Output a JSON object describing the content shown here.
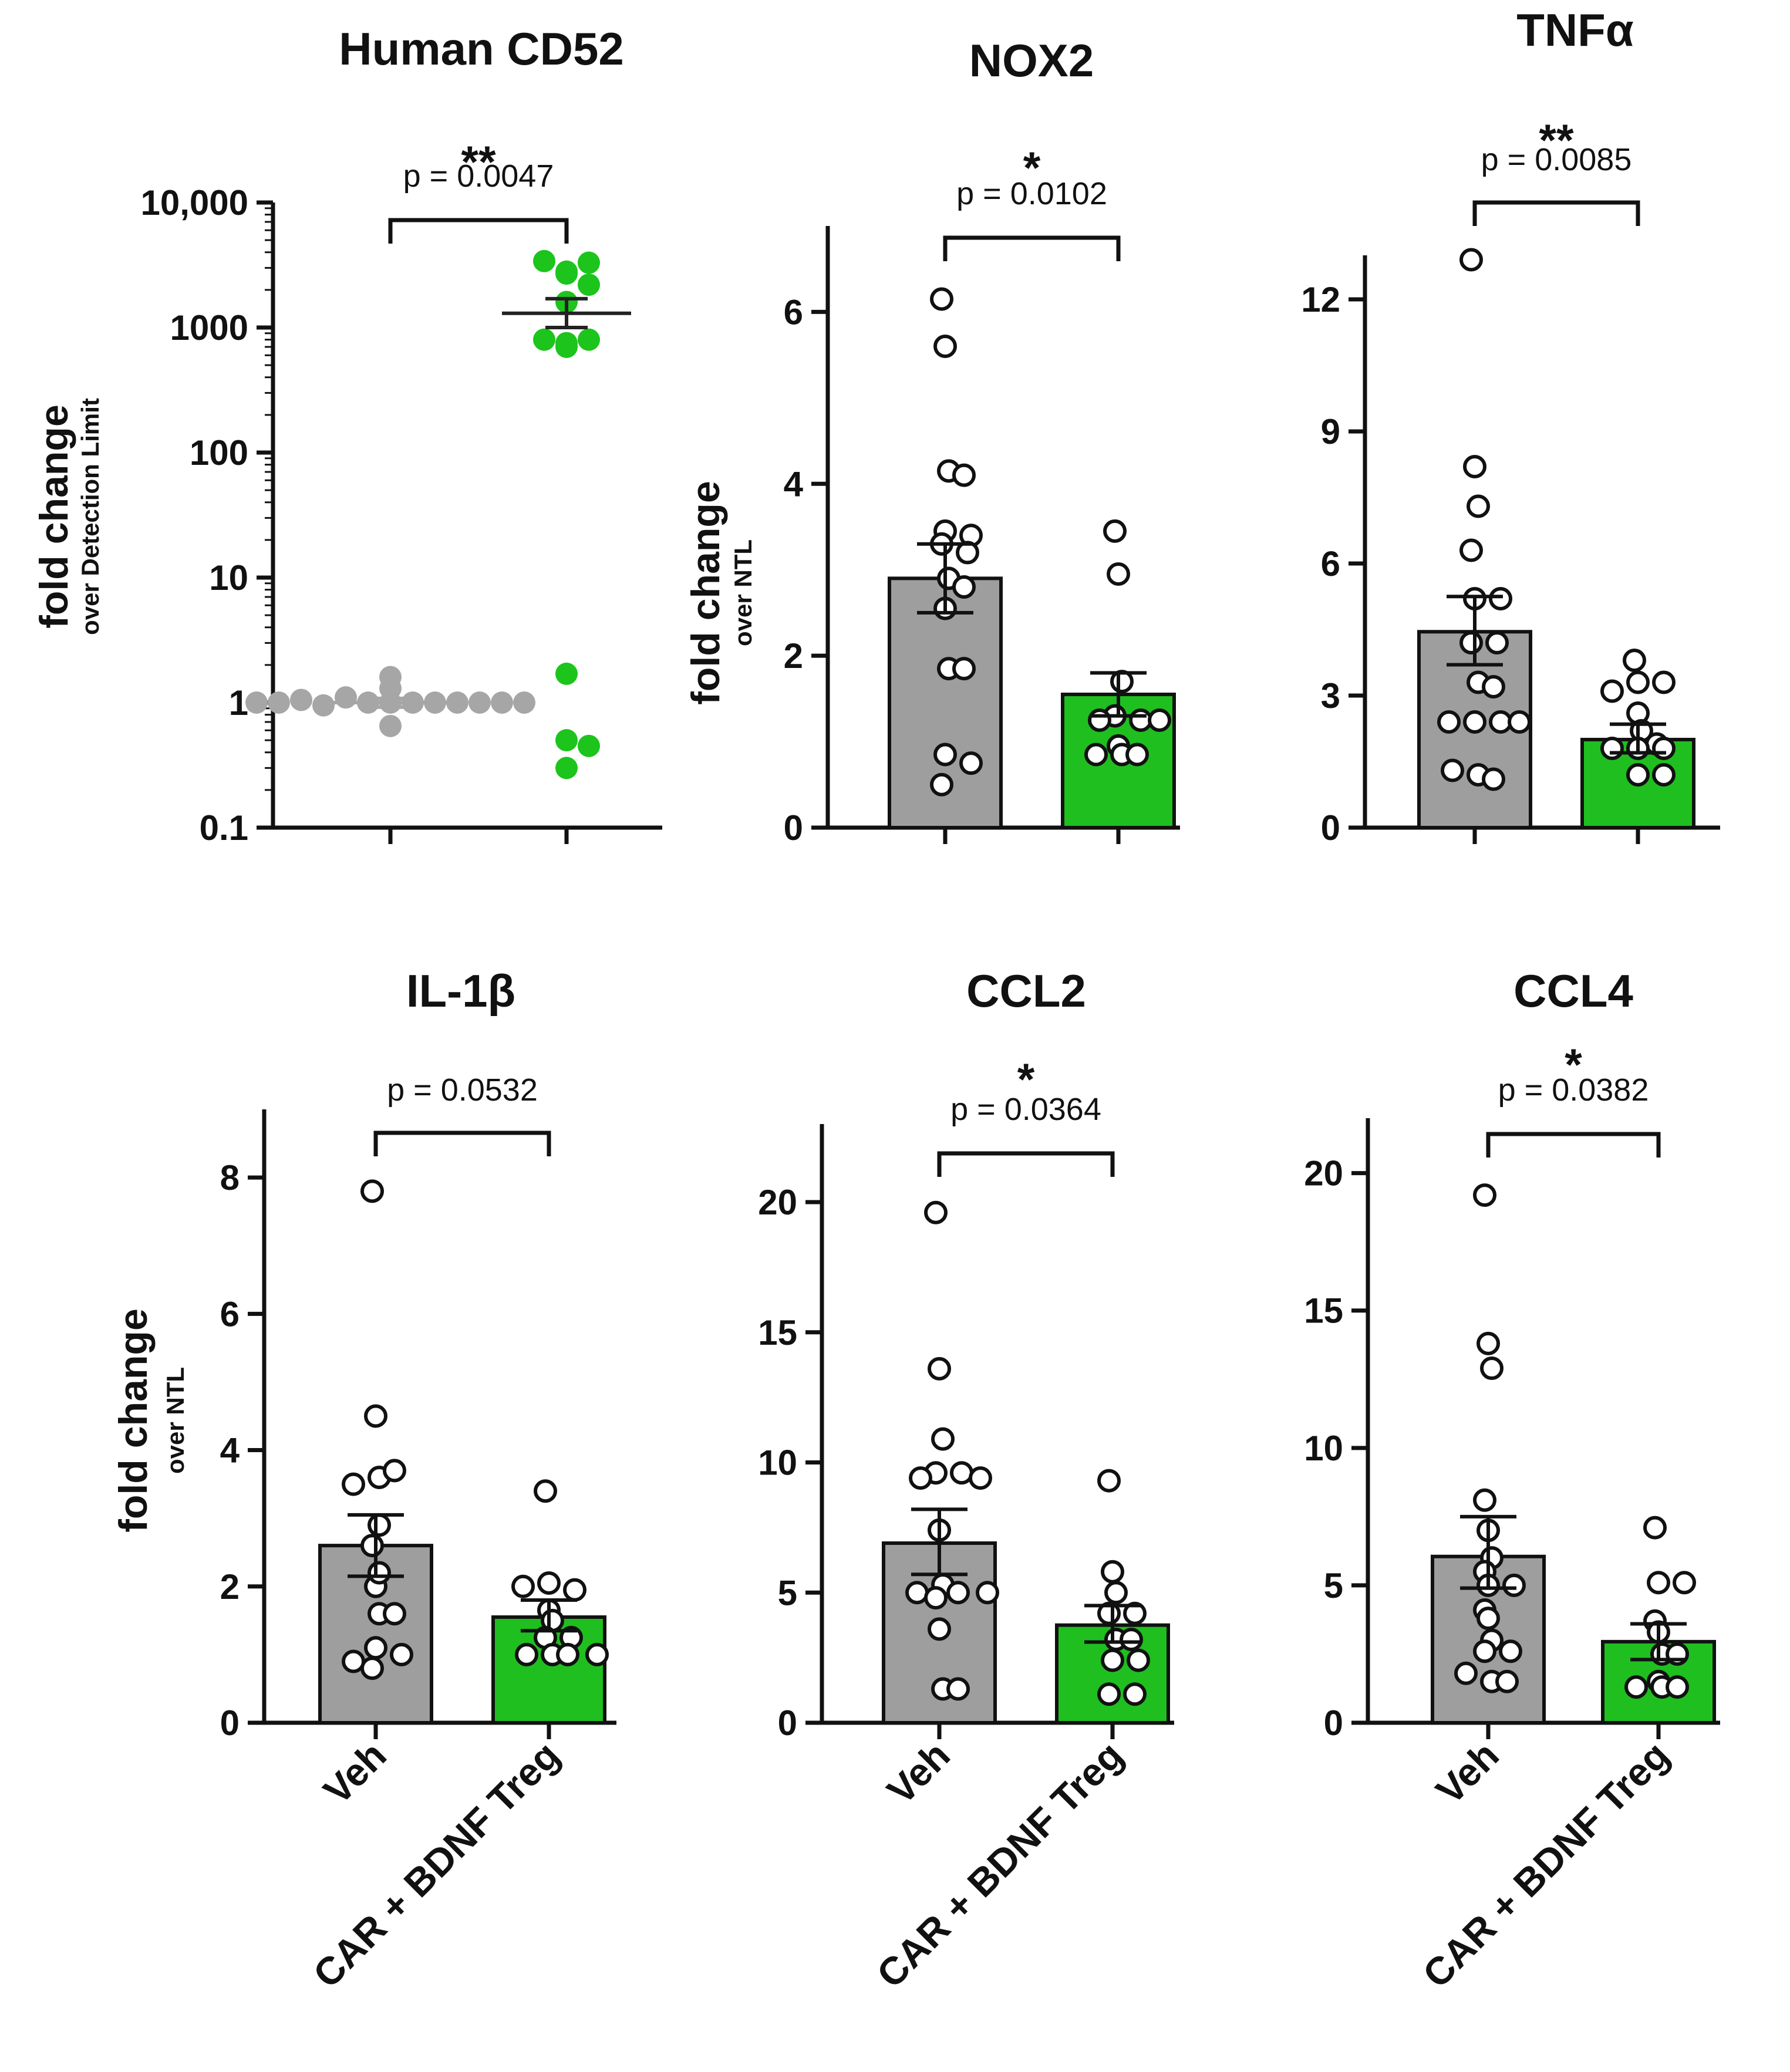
{
  "colors": {
    "veh_fill": "#9e9e9e",
    "treg_fill": "#1fbf1f",
    "veh_dot": "#a6a6a6",
    "treg_dot": "#1cc41c",
    "axis": "#111111"
  },
  "categories": [
    "Veh",
    "CAR + BDNF Treg"
  ],
  "chart_data": [
    {
      "type": "scatter",
      "title": "Human CD52",
      "ylabel": "fold change",
      "ylabel_sub": "over Detection Limit",
      "yscale": "log",
      "ylim": [
        0.1,
        10000
      ],
      "ticks": [
        0.1,
        1,
        10,
        100,
        1000,
        10000
      ],
      "tick_labels": [
        "0.1",
        "1",
        "10",
        "100",
        "1000",
        "10,000"
      ],
      "p_text": "p = 0.0047",
      "stars": "**",
      "show_categories": false,
      "series": [
        {
          "name": "Veh",
          "mean": 1.0,
          "sem_low": 0.92,
          "sem_high": 1.08,
          "points": [
            1,
            1,
            1,
            1,
            1.1,
            1,
            0.95,
            1,
            1.05,
            1,
            1.6,
            1.3,
            0.65,
            1,
            1,
            1
          ]
        },
        {
          "name": "CAR + BDNF Treg",
          "mean": 1300,
          "sem_low": 1000,
          "sem_high": 1700,
          "points": [
            2700,
            2800,
            3300,
            3400,
            1600,
            2200,
            700,
            750,
            800,
            800,
            1.7,
            0.5,
            0.45,
            0.3
          ]
        }
      ]
    },
    {
      "type": "bar",
      "title": "NOX2",
      "ylabel": "fold change",
      "ylabel_sub": "over NTL",
      "yscale": "linear",
      "ylim": [
        0,
        7
      ],
      "ticks": [
        0,
        2,
        4,
        6
      ],
      "tick_labels": [
        "0",
        "2",
        "4",
        "6"
      ],
      "p_text": "p = 0.0102",
      "stars": "*",
      "show_categories": false,
      "series": [
        {
          "name": "Veh",
          "mean": 2.9,
          "sem_low": 2.5,
          "sem_high": 3.3,
          "points": [
            6.15,
            5.6,
            4.15,
            4.1,
            3.45,
            3.4,
            3.3,
            3.2,
            2.9,
            2.8,
            2.55,
            1.85,
            1.85,
            0.85,
            0.75,
            0.5
          ]
        },
        {
          "name": "CAR + BDNF Treg",
          "mean": 1.55,
          "sem_low": 1.3,
          "sem_high": 1.8,
          "points": [
            3.45,
            2.95,
            1.7,
            1.3,
            1.25,
            1.25,
            1.25,
            0.95,
            0.85,
            0.85,
            0.85
          ]
        }
      ]
    },
    {
      "type": "bar",
      "title": "TNFα",
      "ylabel": "",
      "ylabel_sub": "",
      "yscale": "linear",
      "ylim": [
        0,
        13
      ],
      "ticks": [
        0,
        3,
        6,
        9,
        12
      ],
      "tick_labels": [
        "0",
        "3",
        "6",
        "9",
        "12"
      ],
      "p_text": "p = 0.0085",
      "stars": "**",
      "show_categories": false,
      "series": [
        {
          "name": "Veh",
          "mean": 4.45,
          "sem_low": 3.7,
          "sem_high": 5.25,
          "points": [
            12.9,
            8.2,
            7.3,
            6.3,
            5.2,
            5.2,
            4.2,
            4.2,
            3.3,
            3.2,
            2.4,
            2.4,
            2.4,
            2.4,
            1.2,
            1.1,
            1.3
          ]
        },
        {
          "name": "CAR + BDNF Treg",
          "mean": 2.0,
          "sem_low": 1.7,
          "sem_high": 2.35,
          "points": [
            3.8,
            3.3,
            3.3,
            3.1,
            2.6,
            2.2,
            1.9,
            1.8,
            1.8,
            1.8,
            1.2,
            1.2
          ]
        }
      ]
    },
    {
      "type": "bar",
      "title": "IL-1β",
      "ylabel": "fold change",
      "ylabel_sub": "over NTL",
      "yscale": "linear",
      "ylim": [
        0,
        9
      ],
      "ticks": [
        0,
        2,
        4,
        6,
        8
      ],
      "tick_labels": [
        "0",
        "2",
        "4",
        "6",
        "8"
      ],
      "p_text": "p = 0.0532",
      "stars": "",
      "show_categories": true,
      "series": [
        {
          "name": "Veh",
          "mean": 2.6,
          "sem_low": 2.15,
          "sem_high": 3.05,
          "points": [
            7.8,
            4.5,
            3.6,
            3.7,
            3.5,
            2.9,
            2.6,
            2.0,
            1.6,
            1.6,
            1.1,
            1.0,
            0.8,
            0.9,
            2.2
          ]
        },
        {
          "name": "CAR + BDNF Treg",
          "mean": 1.55,
          "sem_low": 1.35,
          "sem_high": 1.8,
          "points": [
            3.4,
            2.05,
            1.95,
            2.0,
            1.65,
            1.5,
            1.25,
            1.25,
            1.0,
            1.0,
            1.0,
            1.0
          ]
        }
      ]
    },
    {
      "type": "bar",
      "title": "CCL2",
      "ylabel": "",
      "ylabel_sub": "",
      "yscale": "linear",
      "ylim": [
        0,
        23
      ],
      "ticks": [
        0,
        5,
        10,
        15,
        20
      ],
      "tick_labels": [
        "0",
        "5",
        "10",
        "15",
        "20"
      ],
      "p_text": "p = 0.0364",
      "stars": "*",
      "show_categories": true,
      "series": [
        {
          "name": "Veh",
          "mean": 6.9,
          "sem_low": 5.7,
          "sem_high": 8.2,
          "points": [
            19.6,
            13.6,
            10.9,
            9.6,
            9.6,
            9.4,
            9.4,
            7.4,
            5.3,
            5.0,
            5.0,
            5.0,
            4.8,
            3.6,
            1.3,
            1.3
          ]
        },
        {
          "name": "CAR + BDNF Treg",
          "mean": 3.75,
          "sem_low": 3.1,
          "sem_high": 4.5,
          "points": [
            9.3,
            5.8,
            5.0,
            4.2,
            4.2,
            3.2,
            3.2,
            2.4,
            2.4,
            1.1,
            1.1
          ]
        }
      ]
    },
    {
      "type": "bar",
      "title": "CCL4",
      "ylabel": "",
      "ylabel_sub": "",
      "yscale": "linear",
      "ylim": [
        0,
        22
      ],
      "ticks": [
        0,
        5,
        10,
        15,
        20
      ],
      "tick_labels": [
        "0",
        "5",
        "10",
        "15",
        "20"
      ],
      "p_text": "p = 0.0382",
      "stars": "*",
      "show_categories": true,
      "series": [
        {
          "name": "Veh",
          "mean": 6.05,
          "sem_low": 4.9,
          "sem_high": 7.5,
          "points": [
            19.2,
            13.8,
            12.9,
            8.1,
            7.0,
            6.0,
            5.5,
            5.0,
            5.0,
            4.1,
            3.8,
            3.0,
            2.6,
            2.6,
            1.5,
            1.5,
            1.8
          ]
        },
        {
          "name": "CAR + BDNF Treg",
          "mean": 2.95,
          "sem_low": 2.3,
          "sem_high": 3.6,
          "points": [
            7.1,
            5.1,
            5.1,
            3.7,
            3.3,
            2.5,
            2.5,
            1.5,
            1.3,
            1.3,
            1.3
          ]
        }
      ]
    }
  ]
}
